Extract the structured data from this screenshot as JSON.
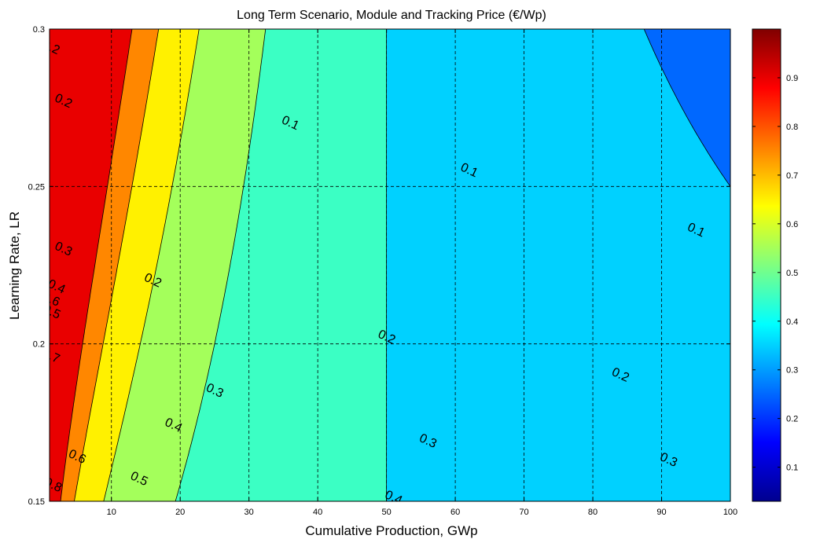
{
  "chart_data": {
    "type": "heatmap",
    "subtype": "filled-contour",
    "title": "Long Term Scenario, Module and Tracking Price (€/Wp)",
    "xlabel": "Cumulative Production, GWp",
    "ylabel": "Learning Rate, LR",
    "xlim": [
      1,
      100
    ],
    "ylim": [
      0.15,
      0.3
    ],
    "x_ticks": [
      "10",
      "20",
      "30",
      "40",
      "50",
      "60",
      "70",
      "80",
      "90",
      "100"
    ],
    "y_ticks": [
      "0.15",
      "0.2",
      "0.25",
      "0.3"
    ],
    "grid": true,
    "grid_style": "dashed",
    "colormap": "jet",
    "clim": [
      0.03,
      1.0
    ],
    "colorbar_ticks": [
      "0.1",
      "0.2",
      "0.3",
      "0.4",
      "0.5",
      "0.6",
      "0.7",
      "0.8",
      "0.9"
    ],
    "contour_levels": [
      0.1,
      0.2,
      0.3,
      0.4,
      0.5,
      0.6,
      0.7,
      0.8
    ],
    "contour_labels": [
      {
        "text": "0.1",
        "x": 36,
        "y": 0.27
      },
      {
        "text": "0.1",
        "x": 62,
        "y": 0.255
      },
      {
        "text": "0.1",
        "x": 95,
        "y": 0.236
      },
      {
        "text": "0.2",
        "x": 3,
        "y": 0.277
      },
      {
        "text": "0.2",
        "x": 16,
        "y": 0.22
      },
      {
        "text": "0.2",
        "x": 50,
        "y": 0.202
      },
      {
        "text": "0.2",
        "x": 84,
        "y": 0.19
      },
      {
        "text": "0.3",
        "x": 3,
        "y": 0.23
      },
      {
        "text": "0.3",
        "x": 25,
        "y": 0.185
      },
      {
        "text": "0.3",
        "x": 56,
        "y": 0.169
      },
      {
        "text": "0.3",
        "x": 91,
        "y": 0.163
      },
      {
        "text": "0.4",
        "x": 2,
        "y": 0.218
      },
      {
        "text": "0.4",
        "x": 19,
        "y": 0.174
      },
      {
        "text": "0.4",
        "x": 51,
        "y": 0.151
      },
      {
        "text": "0.5",
        "x": 1.3,
        "y": 0.21
      },
      {
        "text": "0.5",
        "x": 14,
        "y": 0.157
      },
      {
        "text": "0.6",
        "x": 5,
        "y": 0.164
      },
      {
        "text": "0.7",
        "x": 1.2,
        "y": 0.196
      },
      {
        "text": "0.8",
        "x": 1.5,
        "y": 0.155
      },
      {
        "text": "0.2",
        "x": 1.2,
        "y": 0.294
      },
      {
        "text": "0.6",
        "x": 1.2,
        "y": 0.214
      }
    ]
  }
}
